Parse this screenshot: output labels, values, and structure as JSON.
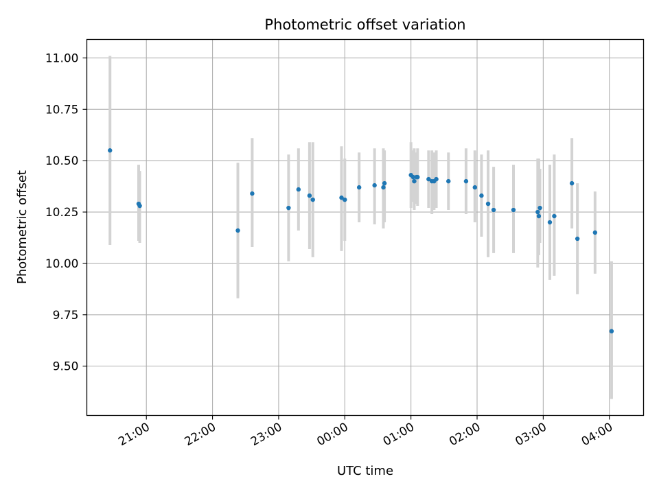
{
  "chart_data": {
    "type": "scatter",
    "title": "Photometric offset variation",
    "xlabel": "UTC time",
    "ylabel": "Photometric offset",
    "grid": true,
    "point_color": "#1f77b4",
    "errorbar_color": "#d3d3d3",
    "xlim": [
      "20:06",
      "04:31"
    ],
    "ylim": [
      9.26,
      11.09
    ],
    "xticks": [
      "21:00",
      "22:00",
      "23:00",
      "00:00",
      "01:00",
      "02:00",
      "03:00",
      "04:00"
    ],
    "yticks": [
      "9.50",
      "9.75",
      "10.00",
      "10.25",
      "10.50",
      "10.75",
      "11.00"
    ],
    "points": [
      {
        "x": "20:27",
        "y": 10.55,
        "low": 10.09,
        "high": 11.01
      },
      {
        "x": "20:53",
        "y": 10.29,
        "low": 10.11,
        "high": 10.48
      },
      {
        "x": "20:54",
        "y": 10.28,
        "low": 10.1,
        "high": 10.45
      },
      {
        "x": "22:23",
        "y": 10.16,
        "low": 9.83,
        "high": 10.49
      },
      {
        "x": "22:36",
        "y": 10.34,
        "low": 10.08,
        "high": 10.61
      },
      {
        "x": "23:09",
        "y": 10.27,
        "low": 10.01,
        "high": 10.53
      },
      {
        "x": "23:18",
        "y": 10.36,
        "low": 10.16,
        "high": 10.56
      },
      {
        "x": "23:28",
        "y": 10.33,
        "low": 10.07,
        "high": 10.59
      },
      {
        "x": "23:31",
        "y": 10.31,
        "low": 10.03,
        "high": 10.59
      },
      {
        "x": "23:57",
        "y": 10.32,
        "low": 10.06,
        "high": 10.57
      },
      {
        "x": "00:00",
        "y": 10.31,
        "low": 10.11,
        "high": 10.51
      },
      {
        "x": "00:13",
        "y": 10.37,
        "low": 10.2,
        "high": 10.54
      },
      {
        "x": "00:27",
        "y": 10.38,
        "low": 10.19,
        "high": 10.56
      },
      {
        "x": "00:35",
        "y": 10.37,
        "low": 10.17,
        "high": 10.56
      },
      {
        "x": "00:36",
        "y": 10.39,
        "low": 10.2,
        "high": 10.55
      },
      {
        "x": "01:00",
        "y": 10.43,
        "low": 10.27,
        "high": 10.59
      },
      {
        "x": "01:02",
        "y": 10.42,
        "low": 10.3,
        "high": 10.55
      },
      {
        "x": "01:03",
        "y": 10.4,
        "low": 10.26,
        "high": 10.56
      },
      {
        "x": "01:05",
        "y": 10.42,
        "low": 10.29,
        "high": 10.54
      },
      {
        "x": "01:06",
        "y": 10.42,
        "low": 10.28,
        "high": 10.56
      },
      {
        "x": "01:16",
        "y": 10.41,
        "low": 10.27,
        "high": 10.55
      },
      {
        "x": "01:19",
        "y": 10.4,
        "low": 10.24,
        "high": 10.55
      },
      {
        "x": "01:21",
        "y": 10.4,
        "low": 10.26,
        "high": 10.54
      },
      {
        "x": "01:23",
        "y": 10.41,
        "low": 10.27,
        "high": 10.55
      },
      {
        "x": "01:34",
        "y": 10.4,
        "low": 10.26,
        "high": 10.54
      },
      {
        "x": "01:50",
        "y": 10.4,
        "low": 10.24,
        "high": 10.56
      },
      {
        "x": "01:58",
        "y": 10.37,
        "low": 10.2,
        "high": 10.55
      },
      {
        "x": "02:04",
        "y": 10.33,
        "low": 10.13,
        "high": 10.53
      },
      {
        "x": "02:10",
        "y": 10.29,
        "low": 10.03,
        "high": 10.55
      },
      {
        "x": "02:15",
        "y": 10.26,
        "low": 10.05,
        "high": 10.47
      },
      {
        "x": "02:33",
        "y": 10.26,
        "low": 10.05,
        "high": 10.48
      },
      {
        "x": "02:55",
        "y": 10.25,
        "low": 9.98,
        "high": 10.51
      },
      {
        "x": "02:56",
        "y": 10.23,
        "low": 10.04,
        "high": 10.51
      },
      {
        "x": "02:57",
        "y": 10.27,
        "low": 10.1,
        "high": 10.46
      },
      {
        "x": "03:06",
        "y": 10.2,
        "low": 9.92,
        "high": 10.48
      },
      {
        "x": "03:10",
        "y": 10.23,
        "low": 9.94,
        "high": 10.53
      },
      {
        "x": "03:26",
        "y": 10.39,
        "low": 10.17,
        "high": 10.61
      },
      {
        "x": "03:31",
        "y": 10.12,
        "low": 9.85,
        "high": 10.39
      },
      {
        "x": "03:47",
        "y": 10.15,
        "low": 9.95,
        "high": 10.35
      },
      {
        "x": "04:02",
        "y": 9.67,
        "low": 9.34,
        "high": 10.01
      }
    ]
  }
}
